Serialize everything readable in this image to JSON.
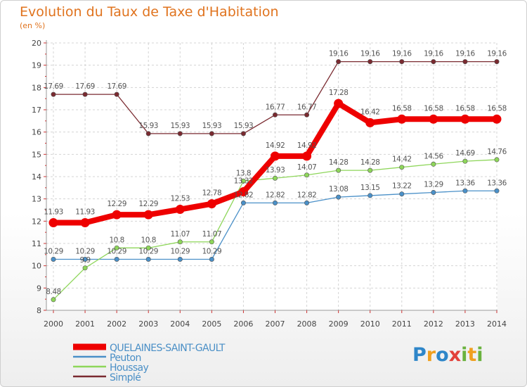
{
  "title": "Evolution du Taux de Taxe d'Habitation",
  "subtitle": "(en %)",
  "logo_text": "Proxiti",
  "chart_data": {
    "type": "line",
    "title": "Evolution du Taux de Taxe d'Habitation",
    "ylabel": "(en %)",
    "xlabel": "",
    "ylim": [
      8,
      20
    ],
    "yticks": [
      8,
      9,
      10,
      11,
      12,
      13,
      14,
      15,
      16,
      17,
      18,
      19,
      20
    ],
    "grid": true,
    "legend_position": "bottom-left",
    "x": [
      "2000",
      "2001",
      "2002",
      "2003",
      "2004",
      "2005",
      "2006",
      "2007",
      "2008",
      "2009",
      "2010",
      "2011",
      "2012",
      "2013",
      "2014"
    ],
    "series": [
      {
        "name": "QUELAINES-SAINT-GAULT",
        "color": "#ee0000",
        "values": [
          11.93,
          11.93,
          12.29,
          12.29,
          12.53,
          12.78,
          13.32,
          14.92,
          14.92,
          17.28,
          16.42,
          16.58,
          16.58,
          16.58,
          16.58
        ],
        "labels": [
          "11.93",
          "11.93",
          "12.29",
          "12.29",
          "12.53",
          "12.78",
          "13.32",
          "14.92",
          "14.92",
          "17.28",
          "16.42",
          "16.58",
          "16.58",
          "16.58",
          "16.58"
        ]
      },
      {
        "name": "Peuton",
        "color": "#4a90c8",
        "values": [
          10.29,
          10.29,
          10.29,
          10.29,
          10.29,
          10.29,
          12.82,
          12.82,
          12.82,
          13.08,
          13.15,
          13.22,
          13.29,
          13.36,
          13.36
        ],
        "labels": [
          "10.29",
          "10.29",
          "10.29",
          "10.29",
          "10.29",
          "10.29",
          "12.82",
          "12.82",
          "12.82",
          "13.08",
          "13.15",
          "13.22",
          "13.29",
          "13.36",
          "13.36"
        ]
      },
      {
        "name": "Houssay",
        "color": "#8ed65a",
        "values": [
          8.48,
          9.9,
          10.8,
          10.8,
          11.07,
          11.07,
          13.8,
          13.93,
          14.07,
          14.28,
          14.28,
          14.42,
          14.56,
          14.69,
          14.76
        ],
        "labels": [
          "8.48",
          "9.9",
          "10.8",
          "10.8",
          "11.07",
          "11.07",
          "13.8",
          "13.93",
          "14.07",
          "14.28",
          "14.28",
          "14.42",
          "14.56",
          "14.69",
          "14.76"
        ]
      },
      {
        "name": "Simplé",
        "color": "#7a2a30",
        "values": [
          17.69,
          17.69,
          17.69,
          15.93,
          15.93,
          15.93,
          15.93,
          16.77,
          16.77,
          19.16,
          19.16,
          19.16,
          19.16,
          19.16,
          19.16
        ],
        "labels": [
          "17.69",
          "17.69",
          "17.69",
          "15.93",
          "15.93",
          "15.93",
          "15.93",
          "16.77",
          "16.77",
          "19.16",
          "19.16",
          "19.16",
          "19.16",
          "19.16",
          "19.16"
        ]
      }
    ]
  }
}
